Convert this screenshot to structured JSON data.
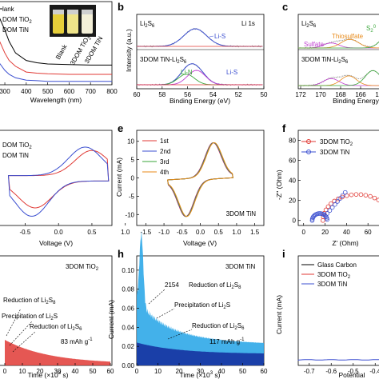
{
  "colors": {
    "red": "#e03a35",
    "blue": "#3b4fd0",
    "green": "#3aa63a",
    "olive": "#9a9a1f",
    "orange": "#e88a1a",
    "cyan": "#2fa8e8",
    "darkblue": "#1a3fa8",
    "purple": "#c03fd0",
    "gray": "#8a8a8a",
    "black": "#000000"
  },
  "chart_data": [
    {
      "panel": "a",
      "type": "line",
      "xlabel": "Wavelength (nm)",
      "ylabel": "",
      "x_ticks": [
        "300",
        "400",
        "500",
        "600",
        "700",
        "800"
      ],
      "legend": [
        "Blank",
        "3DOM TiO2",
        "3DOM TiN"
      ],
      "inset_labels": [
        "Blank",
        "3DOM TiO2",
        "3DOM TiN"
      ],
      "series": [
        {
          "name": "Blank",
          "x": [
            270,
            300,
            320,
            350,
            400,
            450,
            500,
            600,
            700,
            800
          ],
          "y": [
            1.2,
            0.95,
            0.75,
            0.55,
            0.42,
            0.38,
            0.36,
            0.35,
            0.34,
            0.34
          ]
        },
        {
          "name": "3DOM TiO2",
          "x": [
            270,
            300,
            320,
            350,
            400,
            450,
            500,
            600,
            700,
            800
          ],
          "y": [
            0.8,
            0.55,
            0.42,
            0.32,
            0.22,
            0.2,
            0.19,
            0.18,
            0.18,
            0.18
          ]
        },
        {
          "name": "3DOM TiN",
          "x": [
            270,
            300,
            320,
            350,
            400,
            450,
            500,
            600,
            700,
            800
          ],
          "y": [
            0.4,
            0.25,
            0.18,
            0.12,
            0.08,
            0.07,
            0.06,
            0.06,
            0.06,
            0.06
          ]
        }
      ]
    },
    {
      "panel": "b",
      "type": "line",
      "title": "Li 1s",
      "xlabel": "Binding Energy (eV)",
      "ylabel": "Intensity (a.u.)",
      "x_ticks": [
        "60",
        "58",
        "56",
        "54",
        "52",
        "50"
      ],
      "xlim": [
        60,
        50
      ],
      "labels": [
        "Li2S6",
        "3DOM TiN-Li2S6",
        "Li-S",
        "Li-N",
        "Li-S"
      ],
      "top": {
        "center": 55.4,
        "height": 1.0
      },
      "bottom": {
        "peaks": [
          {
            "name": "Li-N",
            "center": 56.1,
            "height": 0.55
          },
          {
            "name": "Li-S",
            "center": 55.3,
            "height": 0.75
          }
        ]
      }
    },
    {
      "panel": "c",
      "type": "line",
      "xlabel": "Binding Energy",
      "ylabel": "",
      "x_ticks": [
        "172",
        "170",
        "168",
        "166",
        "164"
      ],
      "labels": [
        "Li2S6",
        "Sulfate",
        "Thiosulfate",
        "S(2)0",
        "3DOM TiN-Li2S6"
      ]
    },
    {
      "panel": "d",
      "type": "line",
      "xlabel": "Voltage (V)",
      "ylabel": "",
      "x_ticks": [
        "-0.5",
        "0.0",
        "0.5",
        "1.0"
      ],
      "legend": [
        "3DOM TiO2",
        "3DOM TiN"
      ]
    },
    {
      "panel": "e",
      "type": "line",
      "xlabel": "Voltage (V)",
      "ylabel": "Current (mA)",
      "x_ticks": [
        "-1.5",
        "-1.0",
        "-0.5",
        "0.0",
        "0.5",
        "1.0",
        "1.5"
      ],
      "y_ticks": [
        "10",
        "5",
        "0",
        "-5",
        "-10"
      ],
      "ylim": [
        -13,
        13
      ],
      "legend": [
        "1st",
        "2nd",
        "3rd",
        "4th"
      ],
      "label": "3DOM TiN"
    },
    {
      "panel": "f",
      "type": "scatter",
      "xlabel": "Z' (Ohm)",
      "ylabel": "-Z'' (Ohm)",
      "x_ticks": [
        "0",
        "20",
        "40",
        "60"
      ],
      "y_ticks": [
        "80",
        "60",
        "40",
        "20",
        "0"
      ],
      "legend": [
        "3DOM TiO2",
        "3DOM TiN"
      ]
    },
    {
      "panel": "g",
      "type": "area",
      "xlabel": "Time (×10³ s)",
      "ylabel": "",
      "x_ticks": [
        "0",
        "10",
        "20",
        "30",
        "40",
        "50",
        "60"
      ],
      "label": "3DOM TiO2",
      "annotations": [
        "Reduction of Li2S8",
        "Precipitation of Li2S",
        "Reduction of Li2S6"
      ],
      "capacity": "83 mAh g⁻¹"
    },
    {
      "panel": "h",
      "type": "area",
      "xlabel": "Time (×10³ s)",
      "ylabel": "Current (mA)",
      "x_ticks": [
        "0",
        "10",
        "20",
        "30",
        "40",
        "50",
        "60"
      ],
      "y_ticks": [
        "0.10",
        "0.08",
        "0.06",
        "0.04",
        "0.02",
        "0.00"
      ],
      "label": "3DOM TiN",
      "peak_label": "2154",
      "annotations": [
        "Reduction of Li2S8",
        "Precipitation of Li2S",
        "Reduction of Li2S6"
      ],
      "capacity": "117 mAh g⁻¹"
    },
    {
      "panel": "i",
      "type": "line",
      "xlabel": "Potential",
      "ylabel": "Current (mA)",
      "x_ticks": [
        "-0.7",
        "-0.6",
        "-0.5",
        "-0.4"
      ],
      "legend": [
        "Glass Carbon",
        "3DOM TiO2",
        "3DOM TiN"
      ]
    }
  ],
  "text": {
    "a": {
      "leg1": "lank",
      "leg2": "DOM TiO",
      "leg2sub": "2",
      "leg3": "DOM TiN",
      "in1": "Blank",
      "in2": "3DOM TiO",
      "in2sub": "2",
      "in3": "3DOM TiN",
      "xl": "Wavelength (nm)"
    },
    "b": {
      "tag": "b",
      "s1": "Li",
      "s1sub": "2",
      "s1b": "S",
      "s1sub2": "6",
      "core": "Li 1s",
      "lis": "Li-S",
      "s2": "3DOM TiN-Li",
      "s2sub": "2",
      "s2b": "S",
      "s2sub2": "6",
      "lin": "Li-N",
      "lis2": "Li-S",
      "xl": "Binding Energy (eV)",
      "yl": "Intensity (a.u.)"
    },
    "c": {
      "tag": "c",
      "s1": "Li",
      "s1sub": "2",
      "s1b": "S",
      "s1sub2": "6",
      "sulf": "Sulfate",
      "thio": "Thiosulfate",
      "s0": "S",
      "s0sub": "2",
      "s0sup": "0",
      "s2": "3DOM TiN-Li",
      "s2sub": "2",
      "s2b": "S",
      "s2sub2": "6",
      "xl": "Binding Energy"
    },
    "d": {
      "leg1": "DOM TiO",
      "leg1sub": "2",
      "leg2": "DOM TiN",
      "xl": "Voltage (V)"
    },
    "e": {
      "tag": "e",
      "l1": "1st",
      "l2": "2nd",
      "l3": "3rd",
      "l4": "4th",
      "lab": "3DOM TiN",
      "xl": "Voltage (V)",
      "yl": "Current (mA)"
    },
    "f": {
      "tag": "f",
      "l1": "3DOM TiO",
      "l1sub": "2",
      "l2": "3DOM TiN",
      "xl": "Z' (Ohm)",
      "yl": "-Z'' (Ohm)"
    },
    "g": {
      "lab": "3DOM TiO",
      "labsub": "2",
      "a1": "Reduction of Li",
      "a1sub": "2",
      "a1b": "S",
      "a1sub2": "8",
      "a2": "Precipitation of Li",
      "a2sub": "2",
      "a2b": "S",
      "a3": "Reduction of Li",
      "a3sub": "2",
      "a3b": "S",
      "a3sub2": "6",
      "cap": "83 mAh g",
      "capsup": "-1",
      "xl": "Time (×10",
      "xlsup": "3",
      "xlb": " s)"
    },
    "h": {
      "tag": "h",
      "lab": "3DOM TiN",
      "peak": "2154",
      "a1": "Reduction of Li",
      "a1sub": "2",
      "a1b": "S",
      "a1sub2": "8",
      "a2": "Precipitation of Li",
      "a2sub": "2",
      "a2b": "S",
      "a3": "Reduction of Li",
      "a3sub": "2",
      "a3b": "S",
      "a3sub2": "6",
      "cap": "117 mAh g",
      "capsup": "-1",
      "xl": "Time (×10",
      "xlsup": "3",
      "xlb": " s)",
      "yl": "Current (mA)"
    },
    "i": {
      "tag": "i",
      "l1": "Glass Carbon",
      "l2": "3DOM TiO",
      "l2sub": "2",
      "l3": "3DOM TiN",
      "xl": "Potential",
      "yl": "Current (mA)"
    }
  }
}
